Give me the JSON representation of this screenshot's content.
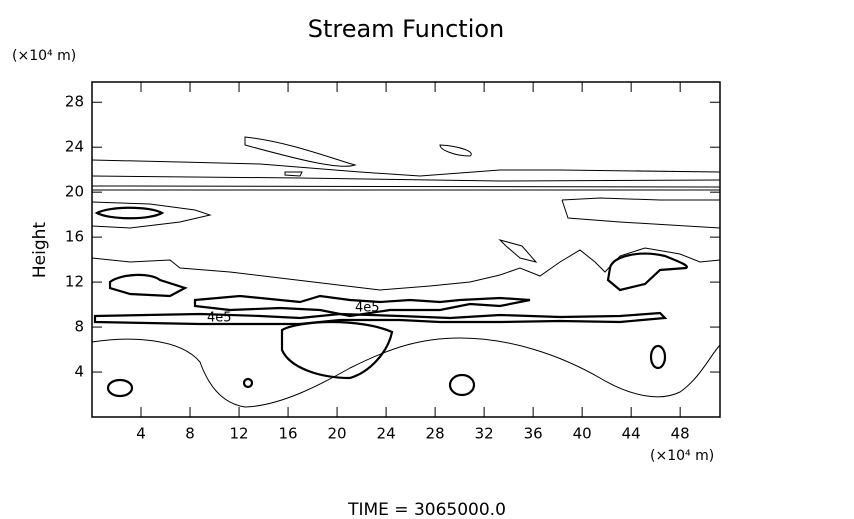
{
  "chart_data": {
    "type": "contour",
    "title": "Stream Function",
    "y_unit": "(×10⁴ m)",
    "x_unit": "(×10⁴ m)",
    "y_label": "Height",
    "footer": "TIME = 3065000.0",
    "contour_labels": [
      "4e5",
      "4e5"
    ],
    "xlim": [
      0,
      51.25
    ],
    "xticks": [
      4,
      8,
      12,
      16,
      20,
      24,
      28,
      32,
      36,
      40,
      44,
      48
    ],
    "ylim": [
      0,
      29.8
    ],
    "yticks": [
      4,
      8,
      12,
      16,
      20,
      24,
      28
    ],
    "color": "#000000"
  }
}
